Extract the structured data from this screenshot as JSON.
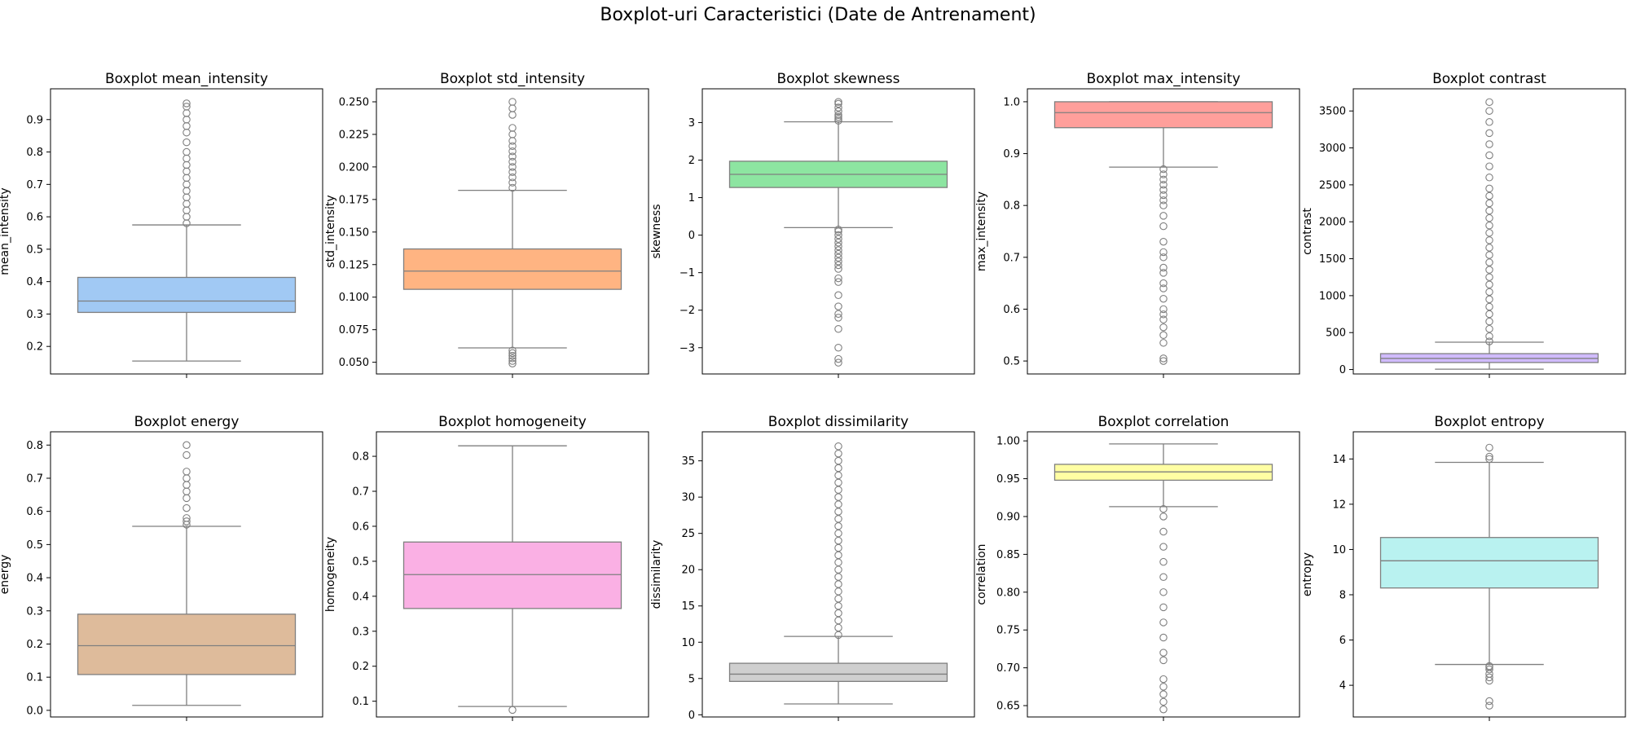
{
  "suptitle": "Boxplot-uri Caracteristici (Date de Antrenament)",
  "chart_data": [
    {
      "type": "box",
      "title": "Boxplot mean_intensity",
      "ylabel": "mean_intensity",
      "color": "#a1c9f4",
      "ylim": [
        0.115,
        0.995
      ],
      "yticks": [
        0.2,
        0.3,
        0.4,
        0.5,
        0.6,
        0.7,
        0.8,
        0.9
      ],
      "ytick_labels": [
        "0.2",
        "0.3",
        "0.4",
        "0.5",
        "0.6",
        "0.7",
        "0.8",
        "0.9"
      ],
      "box": {
        "whisker_low": 0.155,
        "q1": 0.305,
        "median": 0.34,
        "q3": 0.413,
        "whisker_high": 0.575
      },
      "outliers": [
        0.58,
        0.6,
        0.62,
        0.64,
        0.66,
        0.68,
        0.7,
        0.72,
        0.74,
        0.76,
        0.78,
        0.8,
        0.83,
        0.86,
        0.88,
        0.9,
        0.92,
        0.94,
        0.95
      ]
    },
    {
      "type": "box",
      "title": "Boxplot std_intensity",
      "ylabel": "std_intensity",
      "color": "#ffb482",
      "ylim": [
        0.041,
        0.26
      ],
      "yticks": [
        0.05,
        0.075,
        0.1,
        0.125,
        0.15,
        0.175,
        0.2,
        0.225,
        0.25
      ],
      "ytick_labels": [
        "0.050",
        "0.075",
        "0.100",
        "0.125",
        "0.150",
        "0.175",
        "0.200",
        "0.225",
        "0.250"
      ],
      "box": {
        "whisker_low": 0.061,
        "q1": 0.106,
        "median": 0.12,
        "q3": 0.137,
        "whisker_high": 0.182
      },
      "outliers": [
        0.049,
        0.051,
        0.053,
        0.055,
        0.057,
        0.059,
        0.184,
        0.188,
        0.192,
        0.196,
        0.2,
        0.204,
        0.208,
        0.212,
        0.216,
        0.22,
        0.225,
        0.23,
        0.24,
        0.245,
        0.25
      ]
    },
    {
      "type": "box",
      "title": "Boxplot skewness",
      "ylabel": "skewness",
      "color": "#8de5a1",
      "ylim": [
        -3.7,
        3.9
      ],
      "yticks": [
        -3,
        -2,
        -1,
        0,
        1,
        2,
        3
      ],
      "ytick_labels": [
        "−3",
        "−2",
        "−1",
        "0",
        "1",
        "2",
        "3"
      ],
      "box": {
        "whisker_low": 0.2,
        "q1": 1.27,
        "median": 1.62,
        "q3": 1.97,
        "whisker_high": 3.02
      },
      "outliers": [
        -3.4,
        -3.3,
        -3.0,
        -2.5,
        -2.2,
        -2.1,
        -1.9,
        -1.6,
        -1.25,
        -1.15,
        -0.9,
        -0.8,
        -0.7,
        -0.6,
        -0.5,
        -0.4,
        -0.3,
        -0.2,
        -0.1,
        0.0,
        0.1,
        0.15,
        3.05,
        3.1,
        3.15,
        3.2,
        3.3,
        3.4,
        3.5,
        3.55
      ]
    },
    {
      "type": "box",
      "title": "Boxplot max_intensity",
      "ylabel": "max_intensity",
      "color": "#ff9f9b",
      "ylim": [
        0.475,
        1.025
      ],
      "yticks": [
        0.5,
        0.6,
        0.7,
        0.8,
        0.9,
        1.0
      ],
      "ytick_labels": [
        "0.5",
        "0.6",
        "0.7",
        "0.8",
        "0.9",
        "1.0"
      ],
      "box": {
        "whisker_low": 0.874,
        "q1": 0.95,
        "median": 0.979,
        "q3": 1.0,
        "whisker_high": 1.0
      },
      "outliers": [
        0.5,
        0.505,
        0.535,
        0.55,
        0.565,
        0.58,
        0.59,
        0.6,
        0.62,
        0.64,
        0.65,
        0.67,
        0.68,
        0.7,
        0.71,
        0.73,
        0.76,
        0.78,
        0.8,
        0.81,
        0.82,
        0.83,
        0.84,
        0.85,
        0.86,
        0.87
      ]
    },
    {
      "type": "box",
      "title": "Boxplot contrast",
      "ylabel": "contrast",
      "color": "#d0bbff",
      "ylim": [
        -60,
        3800
      ],
      "yticks": [
        0,
        500,
        1000,
        1500,
        2000,
        2500,
        3000,
        3500
      ],
      "ytick_labels": [
        "0",
        "500",
        "1000",
        "1500",
        "2000",
        "2500",
        "3000",
        "3500"
      ],
      "box": {
        "whisker_low": 5,
        "q1": 95,
        "median": 150,
        "q3": 215,
        "whisker_high": 370
      },
      "outliers": [
        380,
        450,
        550,
        650,
        750,
        850,
        950,
        1050,
        1150,
        1250,
        1350,
        1450,
        1550,
        1650,
        1750,
        1850,
        1950,
        2050,
        2150,
        2250,
        2350,
        2450,
        2600,
        2750,
        2900,
        3050,
        3200,
        3350,
        3500,
        3620
      ]
    },
    {
      "type": "box",
      "title": "Boxplot energy",
      "ylabel": "energy",
      "color": "#debb9b",
      "ylim": [
        -0.02,
        0.84
      ],
      "yticks": [
        0.0,
        0.1,
        0.2,
        0.3,
        0.4,
        0.5,
        0.6,
        0.7,
        0.8
      ],
      "ytick_labels": [
        "0.0",
        "0.1",
        "0.2",
        "0.3",
        "0.4",
        "0.5",
        "0.6",
        "0.7",
        "0.8"
      ],
      "box": {
        "whisker_low": 0.015,
        "q1": 0.108,
        "median": 0.195,
        "q3": 0.29,
        "whisker_high": 0.555
      },
      "outliers": [
        0.56,
        0.57,
        0.58,
        0.61,
        0.64,
        0.66,
        0.68,
        0.7,
        0.72,
        0.77,
        0.8
      ]
    },
    {
      "type": "box",
      "title": "Boxplot homogeneity",
      "ylabel": "homogeneity",
      "color": "#fab0e4",
      "ylim": [
        0.055,
        0.87
      ],
      "yticks": [
        0.1,
        0.2,
        0.3,
        0.4,
        0.5,
        0.6,
        0.7,
        0.8
      ],
      "ytick_labels": [
        "0.1",
        "0.2",
        "0.3",
        "0.4",
        "0.5",
        "0.6",
        "0.7",
        "0.8"
      ],
      "box": {
        "whisker_low": 0.085,
        "q1": 0.365,
        "median": 0.462,
        "q3": 0.555,
        "whisker_high": 0.83
      },
      "outliers": [
        0.075
      ]
    },
    {
      "type": "box",
      "title": "Boxplot dissimilarity",
      "ylabel": "dissimilarity",
      "color": "#cfcfcf",
      "ylim": [
        -0.3,
        39
      ],
      "yticks": [
        0,
        5,
        10,
        15,
        20,
        25,
        30,
        35
      ],
      "ytick_labels": [
        "0",
        "5",
        "10",
        "15",
        "20",
        "25",
        "30",
        "35"
      ],
      "box": {
        "whisker_low": 1.5,
        "q1": 4.6,
        "median": 5.6,
        "q3": 7.1,
        "whisker_high": 10.8
      },
      "outliers": [
        11,
        12,
        13,
        14,
        15,
        16,
        17,
        18,
        19,
        20,
        21,
        22,
        23,
        24,
        25,
        26,
        27,
        28,
        29,
        30,
        31,
        32,
        33,
        34,
        35,
        36,
        37
      ]
    },
    {
      "type": "box",
      "title": "Boxplot correlation",
      "ylabel": "correlation",
      "color": "#fffea3",
      "ylim": [
        0.635,
        1.012
      ],
      "yticks": [
        0.65,
        0.7,
        0.75,
        0.8,
        0.85,
        0.9,
        0.95,
        1.0
      ],
      "ytick_labels": [
        "0.65",
        "0.70",
        "0.75",
        "0.80",
        "0.85",
        "0.90",
        "0.95",
        "1.00"
      ],
      "box": {
        "whisker_low": 0.913,
        "q1": 0.948,
        "median": 0.959,
        "q3": 0.969,
        "whisker_high": 0.996
      },
      "outliers": [
        0.645,
        0.655,
        0.665,
        0.675,
        0.685,
        0.71,
        0.72,
        0.74,
        0.76,
        0.78,
        0.8,
        0.82,
        0.84,
        0.86,
        0.88,
        0.9,
        0.91
      ]
    },
    {
      "type": "box",
      "title": "Boxplot entropy",
      "ylabel": "entropy",
      "color": "#b9f2f0",
      "ylim": [
        2.6,
        15.2
      ],
      "yticks": [
        4,
        6,
        8,
        10,
        12,
        14
      ],
      "ytick_labels": [
        "4",
        "6",
        "8",
        "10",
        "12",
        "14"
      ],
      "box": {
        "whisker_low": 4.92,
        "q1": 8.3,
        "median": 9.5,
        "q3": 10.53,
        "whisker_high": 13.85
      },
      "outliers": [
        3.1,
        3.3,
        4.2,
        4.35,
        4.5,
        4.7,
        4.8,
        4.85,
        14.0,
        14.1,
        14.5
      ]
    }
  ]
}
